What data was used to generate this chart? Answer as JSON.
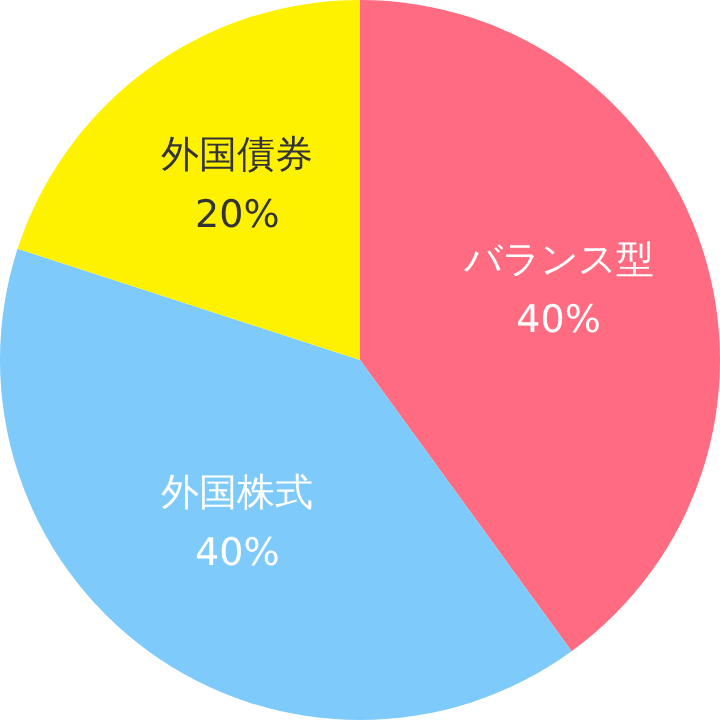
{
  "chart_data": {
    "type": "pie",
    "categories": [
      "バランス型",
      "外国株式",
      "外国債券"
    ],
    "values": [
      40,
      40,
      20
    ],
    "colors": [
      "#ff6b81",
      "#7ecbfb",
      "#fff200"
    ],
    "value_labels": [
      "40%",
      "40%",
      "20%"
    ]
  }
}
